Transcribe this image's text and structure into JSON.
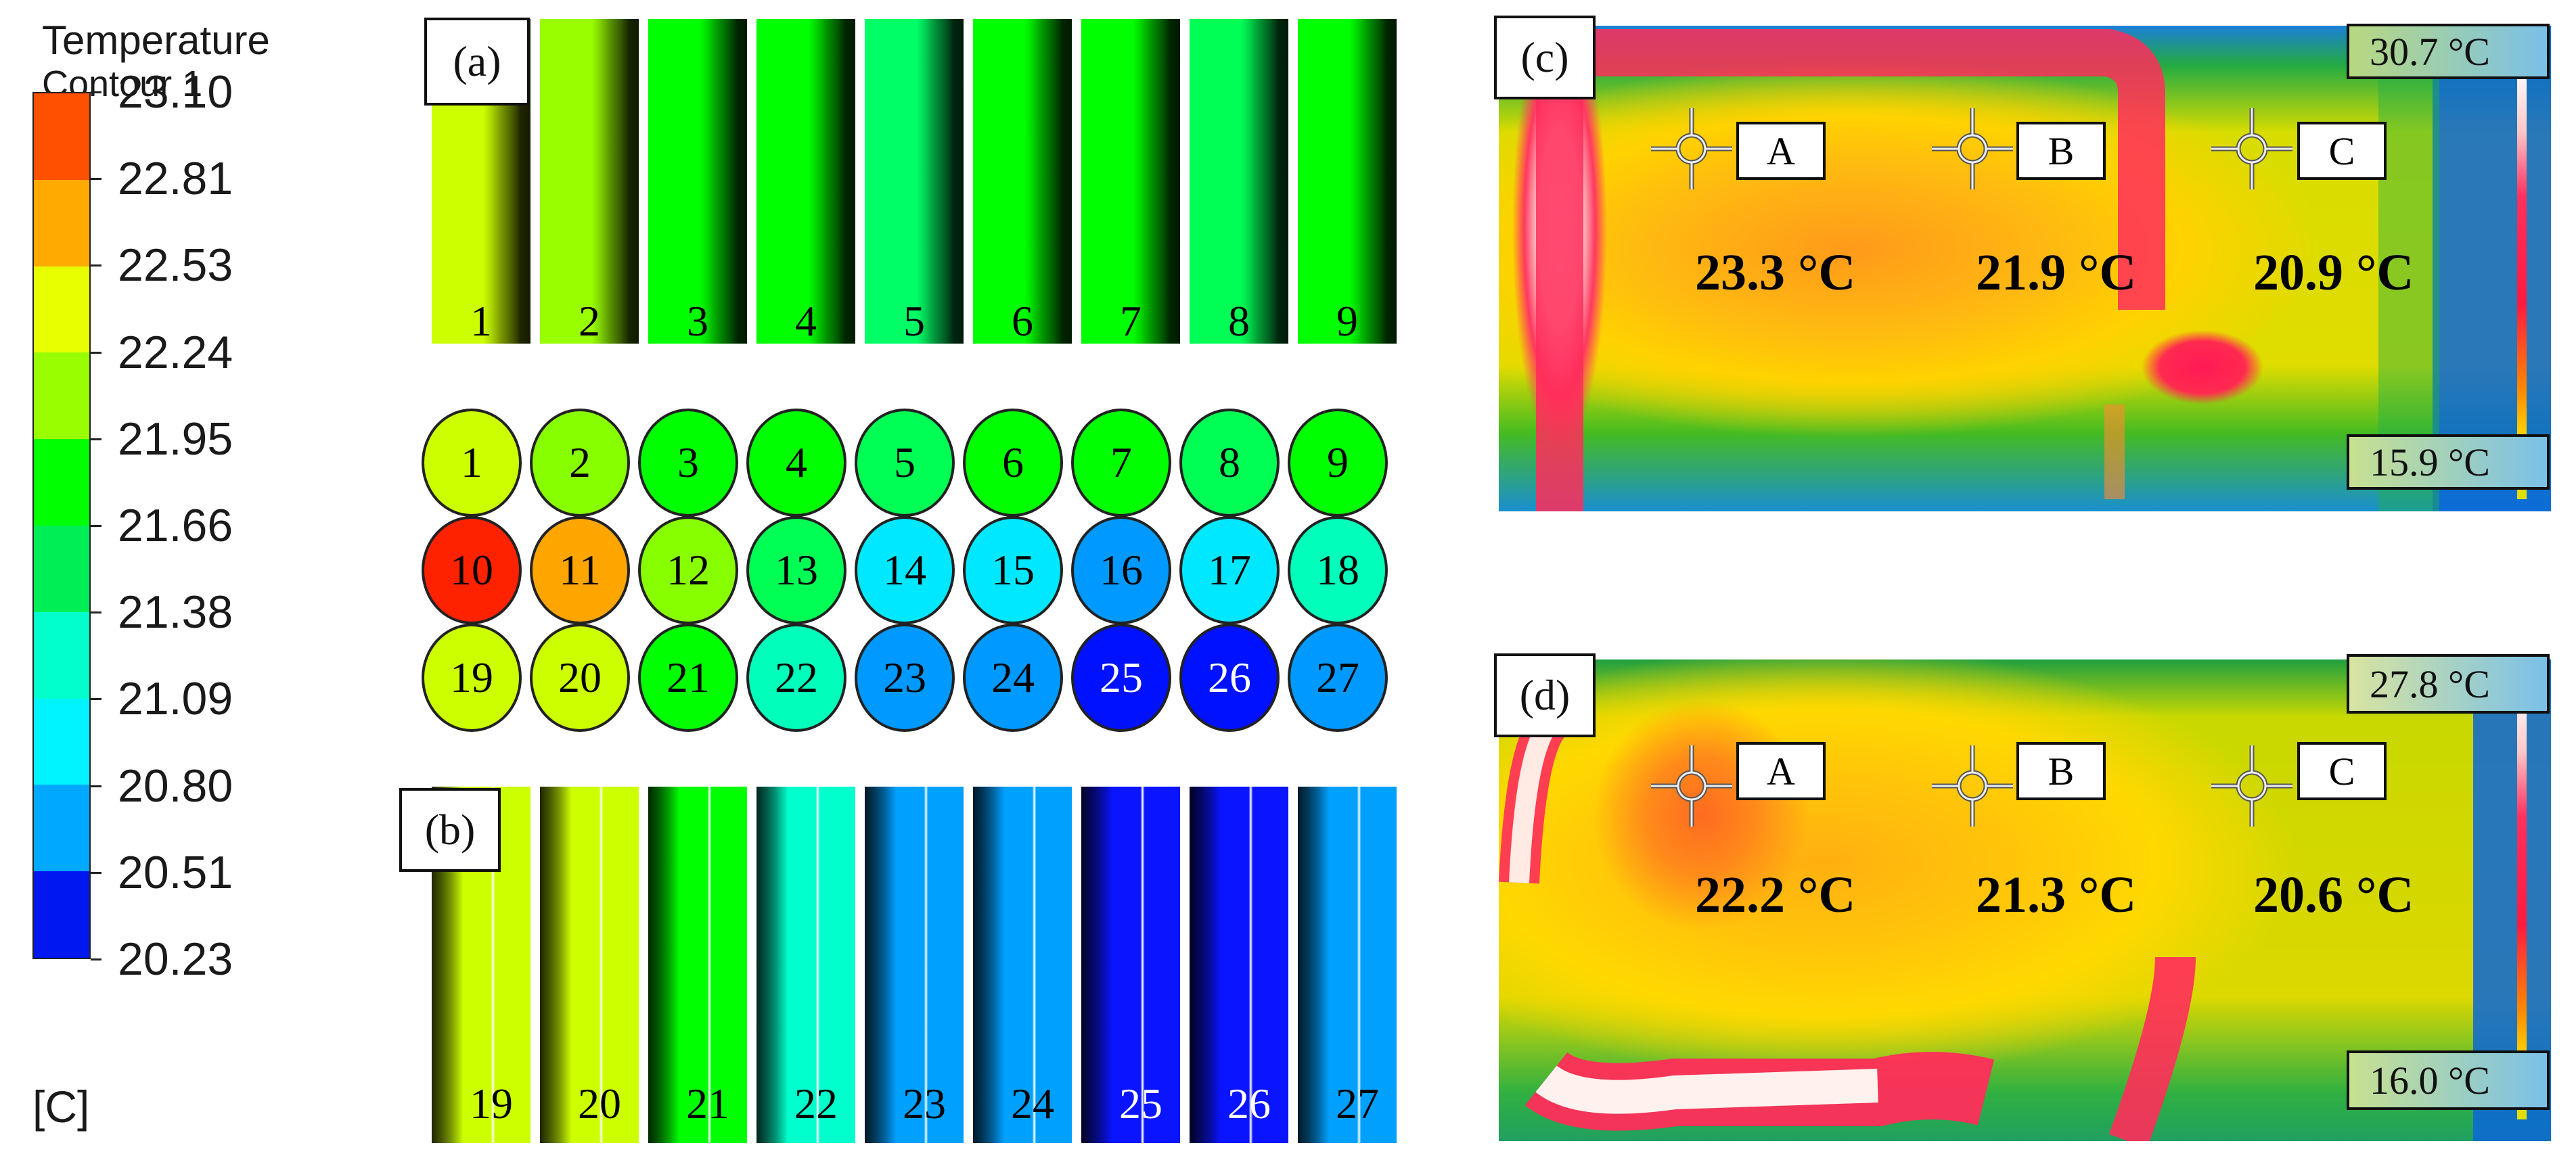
{
  "legend": {
    "title_line1": "Temperature",
    "title_line2": "Contour 1",
    "unit": "[C]",
    "levels": [
      "23.10",
      "22.81",
      "22.53",
      "22.24",
      "21.95",
      "21.66",
      "21.38",
      "21.09",
      "20.80",
      "20.51",
      "20.23"
    ],
    "colors": [
      "#ff5000",
      "#ffaa00",
      "#e8ff00",
      "#99ff00",
      "#00ff00",
      "#00ee55",
      "#00ffcc",
      "#00f4ff",
      "#00a8ff",
      "#0018f0"
    ]
  },
  "panel_a": {
    "label": "(a)",
    "bars": [
      {
        "num": "1",
        "color": "#ccff00"
      },
      {
        "num": "2",
        "color": "#99ff00"
      },
      {
        "num": "3",
        "color": "#00ff00"
      },
      {
        "num": "4",
        "color": "#00ff00"
      },
      {
        "num": "5",
        "color": "#00ff66"
      },
      {
        "num": "6",
        "color": "#00ff00"
      },
      {
        "num": "7",
        "color": "#00ff00"
      },
      {
        "num": "8",
        "color": "#00ff55"
      },
      {
        "num": "9",
        "color": "#00ff00"
      }
    ]
  },
  "circles": {
    "rows": [
      [
        {
          "num": "1",
          "color": "#ccff00",
          "text": "#000"
        },
        {
          "num": "2",
          "color": "#88ff00",
          "text": "#000"
        },
        {
          "num": "3",
          "color": "#00ff00",
          "text": "#000"
        },
        {
          "num": "4",
          "color": "#00ff00",
          "text": "#000"
        },
        {
          "num": "5",
          "color": "#00ff55",
          "text": "#000"
        },
        {
          "num": "6",
          "color": "#00ff00",
          "text": "#000"
        },
        {
          "num": "7",
          "color": "#00ff00",
          "text": "#000"
        },
        {
          "num": "8",
          "color": "#00ff55",
          "text": "#000"
        },
        {
          "num": "9",
          "color": "#00ff00",
          "text": "#000"
        }
      ],
      [
        {
          "num": "10",
          "color": "#ff2200",
          "text": "#000"
        },
        {
          "num": "11",
          "color": "#ffa500",
          "text": "#000"
        },
        {
          "num": "12",
          "color": "#88ff00",
          "text": "#000"
        },
        {
          "num": "13",
          "color": "#00ff55",
          "text": "#000"
        },
        {
          "num": "14",
          "color": "#00e8ff",
          "text": "#000"
        },
        {
          "num": "15",
          "color": "#00e8ff",
          "text": "#000"
        },
        {
          "num": "16",
          "color": "#0099ff",
          "text": "#000"
        },
        {
          "num": "17",
          "color": "#00e8ff",
          "text": "#000"
        },
        {
          "num": "18",
          "color": "#00ffbb",
          "text": "#000"
        }
      ],
      [
        {
          "num": "19",
          "color": "#ccff00",
          "text": "#000"
        },
        {
          "num": "20",
          "color": "#ccff00",
          "text": "#000"
        },
        {
          "num": "21",
          "color": "#00ff00",
          "text": "#000"
        },
        {
          "num": "22",
          "color": "#00ffbb",
          "text": "#000"
        },
        {
          "num": "23",
          "color": "#0099ff",
          "text": "#000"
        },
        {
          "num": "24",
          "color": "#0099ff",
          "text": "#000"
        },
        {
          "num": "25",
          "color": "#0011ff",
          "text": "#fff"
        },
        {
          "num": "26",
          "color": "#0011ff",
          "text": "#fff"
        },
        {
          "num": "27",
          "color": "#0099ff",
          "text": "#000"
        }
      ]
    ]
  },
  "panel_b": {
    "label": "(b)",
    "bars": [
      {
        "num": "19",
        "color": "#ccff00",
        "text": "#000"
      },
      {
        "num": "20",
        "color": "#ccff00",
        "text": "#000"
      },
      {
        "num": "21",
        "color": "#00ff00",
        "text": "#000"
      },
      {
        "num": "22",
        "color": "#00ffcc",
        "text": "#000"
      },
      {
        "num": "23",
        "color": "#00a0ff",
        "text": "#000"
      },
      {
        "num": "24",
        "color": "#00a0ff",
        "text": "#000"
      },
      {
        "num": "25",
        "color": "#0a14ff",
        "text": "#fff"
      },
      {
        "num": "26",
        "color": "#0a14ff",
        "text": "#fff"
      },
      {
        "num": "27",
        "color": "#00a0ff",
        "text": "#000"
      }
    ]
  },
  "panel_c": {
    "label": "(c)",
    "scale_max": "30.7 °C",
    "scale_min": "15.9 °C",
    "points": [
      {
        "label": "A",
        "temp": "23.3 °C"
      },
      {
        "label": "B",
        "temp": "21.9 °C"
      },
      {
        "label": "C",
        "temp": "20.9 °C"
      }
    ]
  },
  "panel_d": {
    "label": "(d)",
    "scale_max": "27.8 °C",
    "scale_min": "16.0 °C",
    "points": [
      {
        "label": "A",
        "temp": "22.2 °C"
      },
      {
        "label": "B",
        "temp": "21.3 °C"
      },
      {
        "label": "C",
        "temp": "20.6 °C"
      }
    ]
  }
}
